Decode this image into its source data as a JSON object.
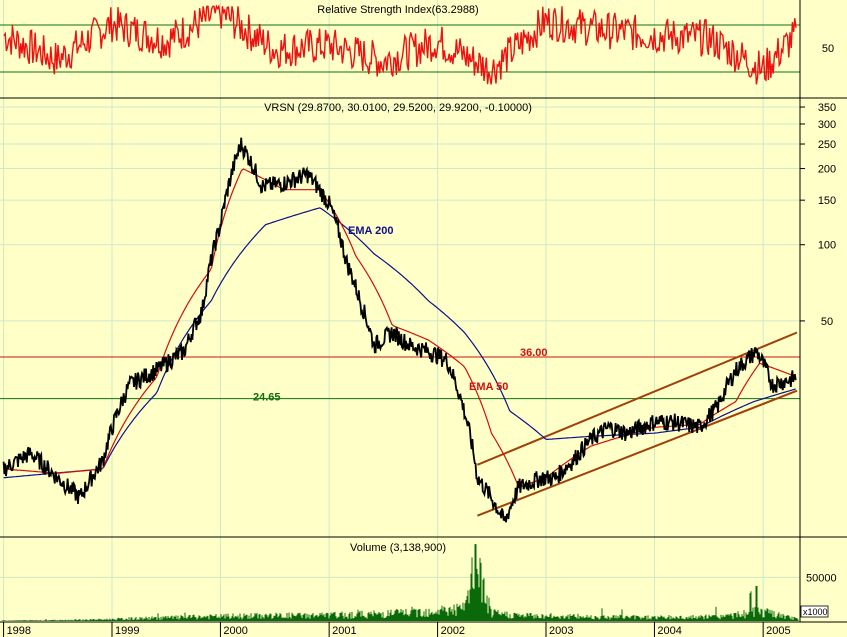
{
  "colors": {
    "background": "#ffffc8",
    "grid": "#cfe8c8",
    "price": "#000000",
    "ema50": "#d01010",
    "ema200": "#10108a",
    "rsi": "#ee1111",
    "volume": "#0a6a0a",
    "resistance": "#d01010",
    "support": "#107010",
    "channel": "#a0400a"
  },
  "rsi_panel": {
    "title": "Relative Strength Index(63.2988)",
    "tick_label": "50"
  },
  "price_panel": {
    "title": "VRSN (29.8700, 30.0100, 29.5200, 29.9200, -0.10000)",
    "ema200_label": "EMA 200",
    "ema50_label": "EMA 50",
    "level_high_label": "36.00",
    "level_low_label": "24.65"
  },
  "volume_panel": {
    "title": "Volume (3,138,900)",
    "tick_label": "50000",
    "multiplier_label": "x1000"
  },
  "chart_data": [
    {
      "type": "line",
      "title": "Relative Strength Index(63.2988)",
      "x_axis": "date",
      "y_ticks": [
        50
      ],
      "ylim": [
        20,
        85
      ],
      "reference_lines": [
        70,
        30
      ],
      "series": [
        {
          "name": "Relative Strength Index",
          "x": [
            "1998-01-01",
            "1998-07-01",
            "1999-01-01",
            "1999-07-01",
            "2000-01-01",
            "2000-07-01",
            "2001-01-01",
            "2001-07-01",
            "2002-01-01",
            "2002-07-01",
            "2003-01-01",
            "2003-07-01",
            "2004-01-01",
            "2004-07-01",
            "2005-01-01",
            "2005-04-25"
          ],
          "values": [
            62,
            45,
            70,
            58,
            78,
            52,
            55,
            44,
            58,
            38,
            72,
            66,
            62,
            60,
            38,
            63.3
          ]
        }
      ]
    },
    {
      "type": "line",
      "title": "VRSN (29.8700, 30.0100, 29.5200, 29.9200, -0.10000)",
      "x_axis": "date",
      "y_scale": "log",
      "y_ticks": [
        50,
        100,
        150,
        200,
        250,
        300,
        350
      ],
      "ylim": [
        7,
        380
      ],
      "x_tick_labels": [
        "1998",
        "1999",
        "2000",
        "2001",
        "2002",
        "2003",
        "2004",
        "2005"
      ],
      "series": [
        {
          "name": "VRSN",
          "x": [
            "1998-01-01",
            "1998-04-01",
            "1998-07-01",
            "1998-09-15",
            "1998-12-01",
            "1999-03-01",
            "1999-06-01",
            "1999-09-01",
            "1999-11-01",
            "2000-01-01",
            "2000-03-10",
            "2000-05-20",
            "2000-08-01",
            "2000-10-20",
            "2001-01-01",
            "2001-03-01",
            "2001-04-15",
            "2001-06-01",
            "2001-08-01",
            "2001-10-01",
            "2001-12-01",
            "2002-02-01",
            "2002-04-01",
            "2002-05-15",
            "2002-07-01",
            "2002-08-15",
            "2002-10-01",
            "2002-12-15",
            "2003-02-01",
            "2003-04-01",
            "2003-06-01",
            "2003-08-01",
            "2003-10-01",
            "2004-01-01",
            "2004-03-01",
            "2004-06-01",
            "2004-08-01",
            "2004-10-01",
            "2004-12-10",
            "2005-02-01",
            "2005-04-25"
          ],
          "values": [
            13,
            15,
            12,
            10,
            14,
            28,
            32,
            38,
            55,
            120,
            250,
            170,
            175,
            190,
            145,
            85,
            60,
            40,
            45,
            40,
            38,
            35,
            22,
            12,
            10,
            8,
            11,
            12,
            12,
            14,
            17,
            19,
            18,
            20,
            20,
            19,
            23,
            32,
            38,
            28,
            29.92
          ]
        },
        {
          "name": "EMA 50",
          "x": [
            "1998-01-01",
            "1998-07-01",
            "1998-12-01",
            "1999-06-01",
            "1999-12-01",
            "2000-03-15",
            "2000-08-01",
            "2000-12-01",
            "2001-04-01",
            "2001-08-01",
            "2001-12-01",
            "2002-04-01",
            "2002-07-01",
            "2002-10-01",
            "2003-01-01",
            "2003-06-01",
            "2004-01-01",
            "2004-06-01",
            "2004-10-01",
            "2004-12-20",
            "2005-04-25"
          ],
          "values": [
            13,
            12.5,
            13,
            30,
            80,
            200,
            165,
            165,
            90,
            48,
            42,
            33,
            18,
            11,
            12,
            16,
            19,
            19.5,
            24,
            34,
            30
          ]
        },
        {
          "name": "EMA 200",
          "x": [
            "1998-01-01",
            "1998-12-01",
            "1999-06-01",
            "1999-12-01",
            "2000-06-01",
            "2000-12-01",
            "2001-06-01",
            "2001-12-01",
            "2002-04-01",
            "2002-09-01",
            "2003-01-01",
            "2003-06-01",
            "2004-01-01",
            "2004-06-01",
            "2004-12-01",
            "2005-04-25"
          ],
          "values": [
            12,
            13,
            26,
            60,
            120,
            140,
            92,
            60,
            45,
            22,
            17,
            17.5,
            18,
            19,
            24,
            27
          ]
        }
      ],
      "horizontal_lines": [
        {
          "label": "36.00",
          "value": 36.0
        },
        {
          "label": "24.65",
          "value": 24.65
        }
      ],
      "trend_channel": {
        "upper": {
          "x": [
            "2002-05-15",
            "2005-04-25"
          ],
          "values": [
            13.5,
            45
          ]
        },
        "lower": {
          "x": [
            "2002-05-15",
            "2005-04-25"
          ],
          "values": [
            8.5,
            26.5
          ]
        }
      }
    },
    {
      "type": "bar",
      "title": "Volume (3,138,900)",
      "x_axis": "date",
      "y_ticks": [
        50000
      ],
      "ylim": [
        0,
        95000
      ],
      "y_unit": "x1000",
      "series": [
        {
          "name": "Volume",
          "x": [
            "1998-01-01",
            "1998-06-01",
            "1998-12-01",
            "1999-06-01",
            "1999-12-01",
            "2000-06-01",
            "2001-01-01",
            "2001-06-01",
            "2001-10-01",
            "2002-01-01",
            "2002-04-01",
            "2002-05-10",
            "2002-07-01",
            "2002-10-01",
            "2003-01-01",
            "2003-06-01",
            "2004-01-01",
            "2004-06-01",
            "2004-10-01",
            "2004-12-10",
            "2005-04-25"
          ],
          "values": [
            800,
            1200,
            2500,
            5000,
            7000,
            8500,
            9000,
            11000,
            14000,
            17000,
            19000,
            88000,
            12000,
            9000,
            8000,
            7000,
            6000,
            6000,
            9000,
            16000,
            3138.9
          ]
        }
      ]
    }
  ]
}
